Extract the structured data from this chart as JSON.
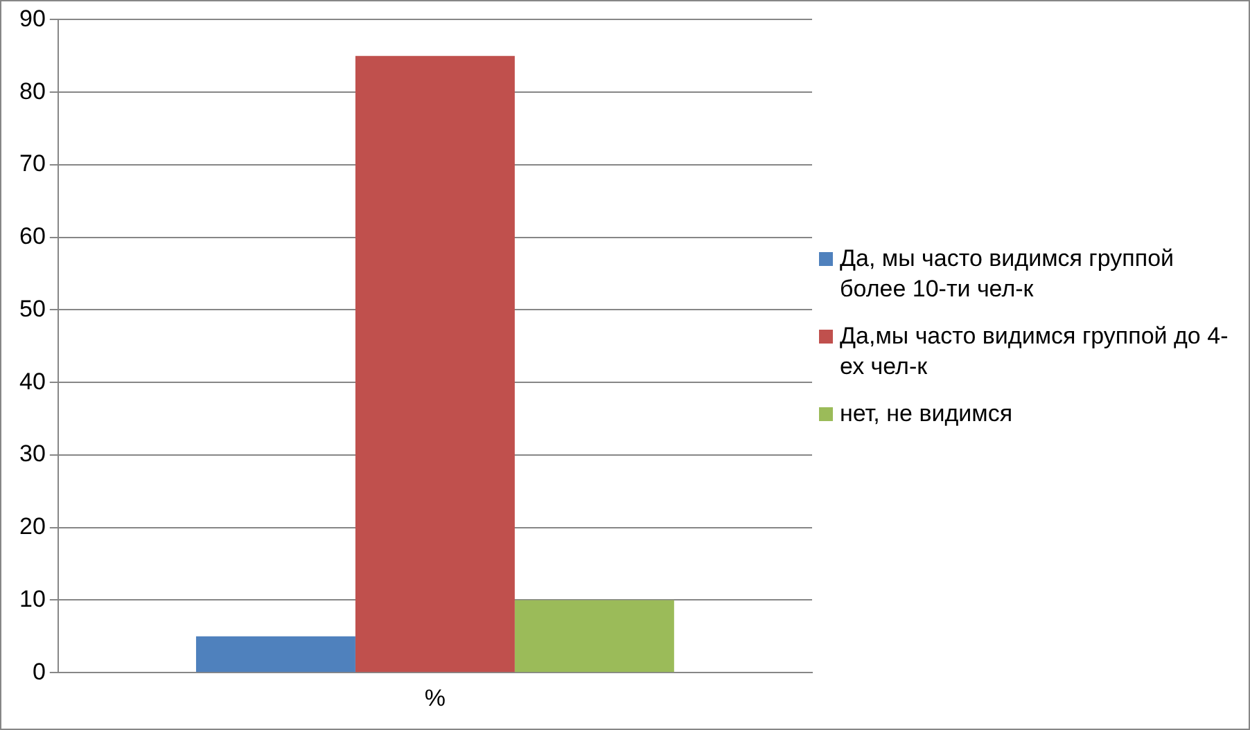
{
  "chart_data": {
    "type": "bar",
    "categories": [
      "%"
    ],
    "series": [
      {
        "name": "Да, мы часто видимся группой более 10-ти чел-к",
        "color": "#4f81bd",
        "values": [
          5
        ]
      },
      {
        "name": "Да,мы часто видимся группой до 4-ех чел-к",
        "color": "#c0504d",
        "values": [
          85
        ]
      },
      {
        "name": "нет, не видимся",
        "color": "#9bbb59",
        "values": [
          10
        ]
      }
    ],
    "ylim": [
      0,
      90
    ],
    "yticks": [
      0,
      10,
      20,
      30,
      40,
      50,
      60,
      70,
      80,
      90
    ],
    "grid": "y",
    "legend": "right"
  }
}
